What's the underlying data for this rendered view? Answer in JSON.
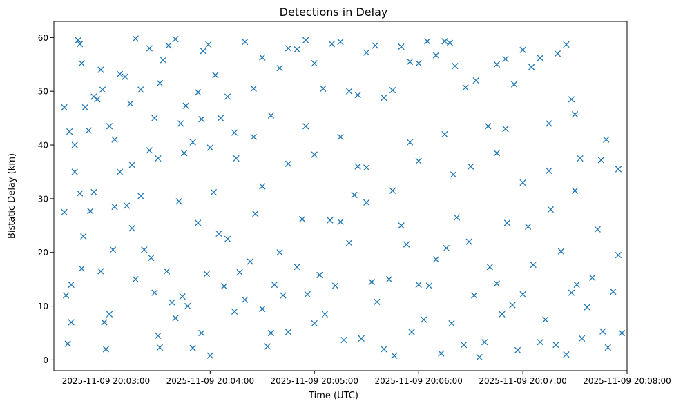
{
  "chart_data": {
    "type": "scatter",
    "title": "Detections in Delay",
    "xlabel": "Time (UTC)",
    "ylabel": "Bistatic Delay (km)",
    "marker": "x",
    "color": "#1f77b4",
    "grid": false,
    "legend": "none",
    "x_ticks": [
      "2025-11-09 20:03:00",
      "2025-11-09 20:04:00",
      "2025-11-09 20:05:00",
      "2025-11-09 20:06:00",
      "2025-11-09 20:07:00",
      "2025-11-09 20:08:00"
    ],
    "y_ticks": [
      "0",
      "10",
      "20",
      "30",
      "40",
      "50",
      "60"
    ],
    "xlim": [
      "2025-11-09 20:02:30",
      "2025-11-09 20:08:00"
    ],
    "ylim": [
      -2,
      63
    ],
    "points": [
      [
        "20:02:36",
        47
      ],
      [
        "20:02:39",
        42.5
      ],
      [
        "20:02:42",
        40
      ],
      [
        "20:02:44",
        59.5
      ],
      [
        "20:02:45",
        58.8
      ],
      [
        "20:02:46",
        55.2
      ],
      [
        "20:02:48",
        47
      ],
      [
        "20:02:50",
        42.7
      ],
      [
        "20:02:53",
        49
      ],
      [
        "20:02:55",
        48.5
      ],
      [
        "20:02:57",
        54
      ],
      [
        "20:02:58",
        50.3
      ],
      [
        "20:03:02",
        43.5
      ],
      [
        "20:03:05",
        41
      ],
      [
        "20:03:08",
        53.2
      ],
      [
        "20:03:11",
        52.7
      ],
      [
        "20:03:14",
        47.7
      ],
      [
        "20:03:17",
        59.8
      ],
      [
        "20:03:20",
        50.3
      ],
      [
        "20:03:25",
        58
      ],
      [
        "20:03:28",
        45
      ],
      [
        "20:03:31",
        51.5
      ],
      [
        "20:03:33",
        55.8
      ],
      [
        "20:03:36",
        58.5
      ],
      [
        "20:03:40",
        59.7
      ],
      [
        "20:03:43",
        44
      ],
      [
        "20:03:46",
        47.3
      ],
      [
        "20:03:50",
        40.5
      ],
      [
        "20:03:53",
        49.8
      ],
      [
        "20:03:56",
        57.5
      ],
      [
        "20:03:59",
        58.7
      ],
      [
        "20:04:03",
        53
      ],
      [
        "20:04:06",
        45
      ],
      [
        "20:04:10",
        49
      ],
      [
        "20:04:14",
        42.3
      ],
      [
        "20:04:20",
        59.2
      ],
      [
        "20:04:25",
        50.5
      ],
      [
        "20:04:30",
        56.3
      ],
      [
        "20:04:35",
        45.5
      ],
      [
        "20:04:40",
        54.3
      ],
      [
        "20:04:45",
        58
      ],
      [
        "20:04:50",
        57.8
      ],
      [
        "20:04:55",
        59.5
      ],
      [
        "20:05:00",
        55.2
      ],
      [
        "20:05:05",
        50.5
      ],
      [
        "20:05:10",
        58.8
      ],
      [
        "20:05:15",
        59.2
      ],
      [
        "20:05:20",
        50
      ],
      [
        "20:05:25",
        49.3
      ],
      [
        "20:05:30",
        57.2
      ],
      [
        "20:05:35",
        58.5
      ],
      [
        "20:05:40",
        48.8
      ],
      [
        "20:05:45",
        50.2
      ],
      [
        "20:05:50",
        58.3
      ],
      [
        "20:05:55",
        55.5
      ],
      [
        "20:06:00",
        55.2
      ],
      [
        "20:06:05",
        59.3
      ],
      [
        "20:06:10",
        56.7
      ],
      [
        "20:06:15",
        59.3
      ],
      [
        "20:06:18",
        59
      ],
      [
        "20:06:21",
        54.7
      ],
      [
        "20:06:27",
        50.7
      ],
      [
        "20:06:33",
        52
      ],
      [
        "20:06:40",
        43.5
      ],
      [
        "20:06:45",
        55
      ],
      [
        "20:06:50",
        56
      ],
      [
        "20:06:55",
        51.3
      ],
      [
        "20:07:00",
        57.7
      ],
      [
        "20:07:05",
        54.5
      ],
      [
        "20:07:10",
        56.2
      ],
      [
        "20:07:15",
        44
      ],
      [
        "20:07:20",
        57
      ],
      [
        "20:07:25",
        58.7
      ],
      [
        "20:07:28",
        48.5
      ],
      [
        "20:07:30",
        45.7
      ],
      [
        "20:07:33",
        37.5
      ],
      [
        "20:02:36",
        27.5
      ],
      [
        "20:02:37",
        12
      ],
      [
        "20:02:38",
        3
      ],
      [
        "20:02:40",
        14
      ],
      [
        "20:02:40",
        7
      ],
      [
        "20:02:42",
        35
      ],
      [
        "20:02:45",
        31
      ],
      [
        "20:02:46",
        17
      ],
      [
        "20:02:47",
        23
      ],
      [
        "20:02:51",
        27.7
      ],
      [
        "20:02:53",
        31.2
      ],
      [
        "20:02:57",
        16.5
      ],
      [
        "20:02:59",
        7
      ],
      [
        "20:03:00",
        2
      ],
      [
        "20:03:02",
        8.5
      ],
      [
        "20:03:04",
        20.5
      ],
      [
        "20:03:05",
        28.5
      ],
      [
        "20:03:08",
        35
      ],
      [
        "20:03:12",
        28.7
      ],
      [
        "20:03:15",
        24.5
      ],
      [
        "20:03:17",
        15
      ],
      [
        "20:03:20",
        30.5
      ],
      [
        "20:03:22",
        20.5
      ],
      [
        "20:03:26",
        19
      ],
      [
        "20:03:28",
        12.5
      ],
      [
        "20:03:30",
        4.5
      ],
      [
        "20:03:31",
        2.3
      ],
      [
        "20:03:35",
        16.5
      ],
      [
        "20:03:38",
        10.7
      ],
      [
        "20:03:40",
        7.8
      ],
      [
        "20:03:42",
        29.5
      ],
      [
        "20:03:44",
        11.8
      ],
      [
        "20:03:47",
        10
      ],
      [
        "20:03:50",
        2.2
      ],
      [
        "20:03:53",
        25.5
      ],
      [
        "20:03:55",
        5
      ],
      [
        "20:03:58",
        16
      ],
      [
        "20:04:00",
        0.8
      ],
      [
        "20:04:02",
        31.2
      ],
      [
        "20:04:05",
        23.5
      ],
      [
        "20:04:08",
        13.7
      ],
      [
        "20:04:10",
        22.5
      ],
      [
        "20:04:14",
        9
      ],
      [
        "20:04:17",
        16.3
      ],
      [
        "20:04:20",
        11.2
      ],
      [
        "20:04:23",
        18.3
      ],
      [
        "20:04:26",
        27.2
      ],
      [
        "20:04:30",
        9.5
      ],
      [
        "20:04:33",
        2.5
      ],
      [
        "20:04:35",
        5
      ],
      [
        "20:04:37",
        14
      ],
      [
        "20:04:40",
        20
      ],
      [
        "20:04:42",
        12
      ],
      [
        "20:04:45",
        5.2
      ],
      [
        "20:04:50",
        17.3
      ],
      [
        "20:04:53",
        26.2
      ],
      [
        "20:04:56",
        12.2
      ],
      [
        "20:05:00",
        6.8
      ],
      [
        "20:05:03",
        15.8
      ],
      [
        "20:05:06",
        8.5
      ],
      [
        "20:05:09",
        26
      ],
      [
        "20:05:12",
        13.8
      ],
      [
        "20:05:15",
        25.7
      ],
      [
        "20:05:17",
        3.7
      ],
      [
        "20:05:20",
        21.8
      ],
      [
        "20:05:23",
        30.7
      ],
      [
        "20:05:27",
        4
      ],
      [
        "20:05:30",
        29.3
      ],
      [
        "20:05:33",
        14.5
      ],
      [
        "20:05:36",
        10.8
      ],
      [
        "20:05:40",
        2
      ],
      [
        "20:05:43",
        15
      ],
      [
        "20:05:46",
        0.8
      ],
      [
        "20:05:50",
        25
      ],
      [
        "20:05:53",
        21.5
      ],
      [
        "20:05:56",
        5.2
      ],
      [
        "20:06:00",
        14
      ],
      [
        "20:06:03",
        7.5
      ],
      [
        "20:06:06",
        13.8
      ],
      [
        "20:06:10",
        18.7
      ],
      [
        "20:06:13",
        1.2
      ],
      [
        "20:06:16",
        20.8
      ],
      [
        "20:06:19",
        6.8
      ],
      [
        "20:06:22",
        26.5
      ],
      [
        "20:06:26",
        2.8
      ],
      [
        "20:06:29",
        22
      ],
      [
        "20:06:32",
        12
      ],
      [
        "20:06:35",
        0.5
      ],
      [
        "20:06:38",
        3.3
      ],
      [
        "20:06:41",
        17.3
      ],
      [
        "20:06:45",
        14.2
      ],
      [
        "20:06:48",
        8.5
      ],
      [
        "20:06:51",
        25.5
      ],
      [
        "20:06:54",
        10.2
      ],
      [
        "20:06:57",
        1.8
      ],
      [
        "20:07:00",
        12.2
      ],
      [
        "20:07:03",
        24.8
      ],
      [
        "20:07:06",
        17.7
      ],
      [
        "20:07:10",
        3.3
      ],
      [
        "20:07:13",
        7.5
      ],
      [
        "20:07:16",
        28
      ],
      [
        "20:07:19",
        2.8
      ],
      [
        "20:07:22",
        20.2
      ],
      [
        "20:07:25",
        1
      ],
      [
        "20:07:28",
        12.5
      ],
      [
        "20:07:31",
        14
      ],
      [
        "20:07:34",
        4
      ],
      [
        "20:07:37",
        9.8
      ],
      [
        "20:07:40",
        15.3
      ],
      [
        "20:07:43",
        24.3
      ],
      [
        "20:07:46",
        5.3
      ],
      [
        "20:07:49",
        2.3
      ],
      [
        "20:07:52",
        12.7
      ],
      [
        "20:07:55",
        19.5
      ],
      [
        "20:07:57",
        5
      ],
      [
        "20:07:00",
        33
      ],
      [
        "20:06:45",
        38.5
      ],
      [
        "20:06:30",
        36
      ],
      [
        "20:06:15",
        42
      ],
      [
        "20:06:00",
        37
      ],
      [
        "20:05:45",
        31.5
      ],
      [
        "20:05:30",
        35.8
      ],
      [
        "20:05:15",
        41.5
      ],
      [
        "20:05:00",
        38.2
      ],
      [
        "20:04:45",
        36.5
      ],
      [
        "20:04:30",
        32.3
      ],
      [
        "20:04:15",
        37.5
      ],
      [
        "20:04:00",
        39.5
      ],
      [
        "20:03:45",
        38.5
      ],
      [
        "20:03:30",
        37.5
      ],
      [
        "20:03:15",
        36.3
      ],
      [
        "20:07:30",
        31.5
      ],
      [
        "20:07:15",
        35.2
      ],
      [
        "20:06:50",
        43
      ],
      [
        "20:06:20",
        34.5
      ],
      [
        "20:05:55",
        40.5
      ],
      [
        "20:05:25",
        36
      ],
      [
        "20:04:55",
        43.5
      ],
      [
        "20:04:25",
        41.5
      ],
      [
        "20:03:55",
        44.8
      ],
      [
        "20:03:25",
        39
      ],
      [
        "20:07:45",
        37.2
      ],
      [
        "20:07:48",
        41
      ],
      [
        "20:07:55",
        35.5
      ]
    ]
  }
}
